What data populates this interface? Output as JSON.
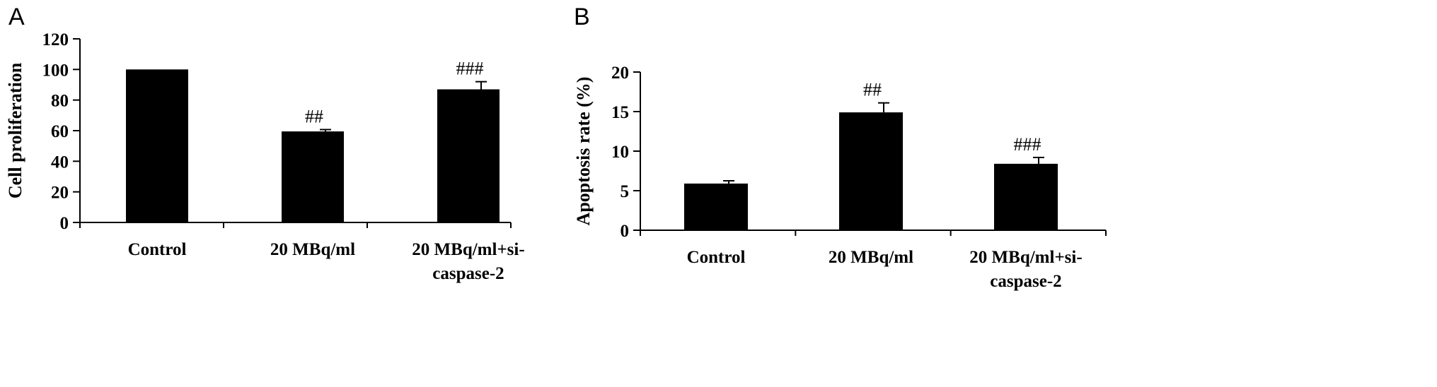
{
  "chart_data": [
    {
      "panel_label": "A",
      "type": "bar",
      "categories": [
        "Control",
        "20 MBq/ml",
        "20 MBq/ml+si-\ncaspase-2"
      ],
      "values": [
        100,
        59.5,
        87
      ],
      "errors": [
        0,
        1.2,
        5
      ],
      "annotations": [
        "",
        "##",
        "###"
      ],
      "ylabel": "Cell proliferation",
      "ylim": [
        0,
        120
      ],
      "yticks": [
        0,
        20,
        40,
        60,
        80,
        100,
        120
      ],
      "grid": false,
      "bar_color": "#000000"
    },
    {
      "panel_label": "B",
      "type": "bar",
      "categories": [
        "Control",
        "20 MBq/ml",
        "20 MBq/ml+si-\ncaspase-2"
      ],
      "values": [
        5.9,
        14.9,
        8.4
      ],
      "errors": [
        0.35,
        1.2,
        0.8
      ],
      "annotations": [
        "",
        "##",
        "###"
      ],
      "ylabel": "Apoptosis rate (%)",
      "ylim": [
        0,
        20
      ],
      "yticks": [
        0,
        5,
        10,
        15,
        20
      ],
      "grid": false,
      "bar_color": "#000000"
    }
  ]
}
